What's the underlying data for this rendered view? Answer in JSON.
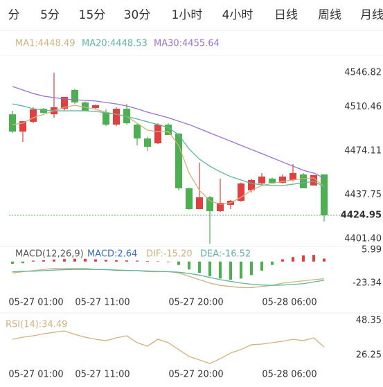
{
  "tabs": [
    "分",
    "5分",
    "15分",
    "30分",
    "1小时",
    "4小时",
    "日线",
    "周线",
    "月线"
  ],
  "active_tab": 4,
  "chart_data": [
    {
      "type": "candlestick",
      "open": [
        4508.4,
        4494.1,
        4502.2,
        4513.0,
        4508.4,
        4513.0,
        4528.5,
        4518.2,
        4513.6,
        4509.6,
        4499.9,
        4513.0,
        4499.9,
        4488.4,
        4484.4,
        4499.9,
        4492.4,
        4447.2,
        4430.0,
        4439.8,
        4428.3,
        4433.5,
        4436.9,
        4445.5,
        4451.2,
        4455.2,
        4451.8,
        4454.1,
        4458.7,
        4449.5,
        4458.7
      ],
      "high": [
        4511.3,
        4502.7,
        4514.2,
        4513.6,
        4542.8,
        4522.8,
        4529.6,
        4519.0,
        4516.5,
        4512.5,
        4514.2,
        4517.0,
        4501.0,
        4489.6,
        4501.0,
        4501.0,
        4493.0,
        4447.8,
        4468.4,
        4440.9,
        4455.2,
        4437.5,
        4452.0,
        4455.2,
        4459.8,
        4456.0,
        4458.7,
        4467.2,
        4459.8,
        4458.1,
        4458.7
      ],
      "low": [
        4493.0,
        4485.6,
        4501.0,
        4509.0,
        4505.6,
        4511.3,
        4517.0,
        4511.3,
        4512.5,
        4498.7,
        4498.7,
        4499.9,
        4482.7,
        4478.1,
        4483.8,
        4491.3,
        4445.5,
        4429.5,
        4430.0,
        4401.4,
        4427.7,
        4430.0,
        4436.0,
        4443.8,
        4449.5,
        4451.8,
        4451.2,
        4452.9,
        4447.2,
        4449.5,
        4419.7
      ],
      "close": [
        4494.1,
        4502.7,
        4512.5,
        4509.6,
        4514.2,
        4522.8,
        4518.2,
        4511.3,
        4515.9,
        4499.9,
        4513.0,
        4501.0,
        4488.4,
        4481.5,
        4499.9,
        4491.3,
        4447.2,
        4430.0,
        4439.8,
        4428.3,
        4435.2,
        4436.9,
        4451.2,
        4454.1,
        4456.9,
        4451.8,
        4456.9,
        4459.8,
        4447.2,
        4458.1,
        4424.95
      ],
      "up_color": "#e0403f",
      "down_color": "#4caf50",
      "series": [
        {
          "name": "MA1:4448.49",
          "color": "#d2b07f",
          "values": [
            4499.9,
            4501.0,
            4505.6,
            4508.4,
            4511.3,
            4514.2,
            4515.9,
            4514.2,
            4512.5,
            4510.2,
            4508.4,
            4506.7,
            4501.0,
            4495.3,
            4494.1,
            4494.1,
            4482.7,
            4459.8,
            4445.5,
            4436.9,
            4434.0,
            4435.2,
            4439.8,
            4445.5,
            4449.5,
            4451.2,
            4452.9,
            4454.1,
            4455.2,
            4455.8,
            4448.49
          ]
        },
        {
          "name": "MA20:4448.53",
          "color": "#5fb3a0",
          "values": [
            4517.0,
            4515.3,
            4513.0,
            4511.9,
            4511.3,
            4511.3,
            4511.3,
            4511.3,
            4510.8,
            4509.6,
            4508.4,
            4506.7,
            4504.5,
            4502.2,
            4499.9,
            4497.6,
            4491.3,
            4479.8,
            4471.3,
            4465.5,
            4460.9,
            4456.9,
            4454.1,
            4451.2,
            4450.1,
            4449.5,
            4449.5,
            4450.6,
            4451.8,
            4452.9,
            4448.53
          ]
        },
        {
          "name": "MA30:4455.64",
          "color": "#9b6fcf",
          "values": [
            4531.4,
            4528.5,
            4525.6,
            4523.4,
            4522.2,
            4521.1,
            4520.5,
            4519.9,
            4519.4,
            4518.2,
            4517.0,
            4515.3,
            4513.0,
            4510.2,
            4507.9,
            4505.6,
            4502.7,
            4499.9,
            4496.5,
            4493.0,
            4489.6,
            4486.2,
            4482.7,
            4479.3,
            4475.9,
            4472.4,
            4469.0,
            4465.5,
            4462.1,
            4459.8,
            4455.64
          ]
        }
      ],
      "ylim": [
        4401.4,
        4546.82
      ],
      "yticks": [
        4546.82,
        4510.46,
        4474.11,
        4437.75,
        {
          "value": 4401.4,
          "label": "4401.40"
        }
      ],
      "current_price": 4424.95,
      "current_price_color": "#4caf50"
    },
    {
      "type": "macd",
      "title": "MACD(12,26,9)",
      "up_color": "#e0403f",
      "down_color": "#4caf50",
      "series": [
        {
          "name": "MACD:2.64",
          "color": "#3b6fb5",
          "values": [
            -2,
            -1.5,
            0.8,
            1.2,
            1.8,
            2.2,
            2.5,
            2.4,
            2,
            1.5,
            1.2,
            1,
            0.8,
            0.5,
            0.3,
            -0.5,
            -3,
            -7,
            -10,
            -13,
            -15,
            -16,
            -15,
            -12,
            -8,
            -3,
            2,
            4,
            5.5,
            5.9,
            2.64
          ]
        },
        {
          "name": "DIF:-15.20",
          "color": "#d2b07f",
          "values": [
            -10,
            -9,
            -8,
            -7,
            -6,
            -6,
            -6,
            -6,
            -7,
            -7,
            -8,
            -8,
            -8,
            -9,
            -9,
            -9,
            -10,
            -13,
            -16,
            -19,
            -21,
            -22,
            -23,
            -23,
            -22,
            -21,
            -19,
            -18,
            -17,
            -16,
            -15.2
          ]
        },
        {
          "name": "DEA:-16.52",
          "color": "#5fb3a0",
          "values": [
            -9,
            -8.5,
            -8.5,
            -8,
            -7.5,
            -7.2,
            -7,
            -7,
            -7,
            -7.2,
            -7.5,
            -7.8,
            -8,
            -8.3,
            -8.6,
            -8.9,
            -9.4,
            -10.5,
            -12,
            -14,
            -16,
            -17.5,
            -19,
            -20,
            -20.7,
            -21,
            -20.7,
            -20.2,
            -19.5,
            -18,
            -16.52
          ]
        }
      ],
      "ylim": [
        -23.34,
        5.99
      ],
      "yticks": [
        5.99,
        -23.34
      ],
      "x_tick_labels": [
        "05-27 01:00",
        "05-27 11:00",
        "05-27 20:00",
        "05-28 06:00"
      ]
    },
    {
      "type": "line",
      "series": [
        {
          "name": "RSI(14):34.49",
          "color": "#d2b07f",
          "values": [
            39.5,
            40.8,
            41.7,
            43.0,
            43.9,
            44.8,
            42.6,
            40.8,
            39.5,
            38.6,
            40.4,
            41.7,
            37.3,
            35.1,
            39.5,
            37.3,
            32.9,
            28.5,
            26.3,
            24.0,
            27.1,
            30.7,
            32.9,
            36.0,
            36.4,
            37.3,
            38.2,
            39.5,
            38.6,
            40.4,
            34.49
          ]
        }
      ],
      "ylim": [
        26.25,
        48.35
      ],
      "yticks": [
        48.35,
        26.25
      ],
      "x_tick_labels": [
        "05-27 01:00",
        "05-27 11:00",
        "05-27 20:00",
        "05-28 06:00"
      ]
    }
  ]
}
